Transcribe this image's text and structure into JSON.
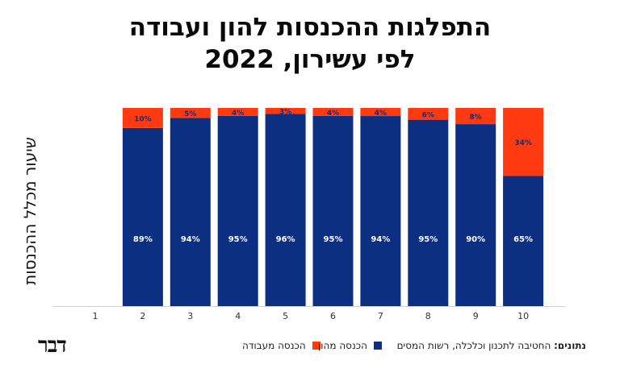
{
  "title_line1": "התפלגות ההכנסות להון ועבודה",
  "title_line2": "לפי עשירון, 2022",
  "ylabel": "שיעור מכלל ההכנסות",
  "legend": {
    "capital": "הכנסה מהון",
    "labor": "הכנסה מעבודה"
  },
  "source_label": "נתונים:",
  "source_text": "החטיבה לתכנון וכלכלה, רשות המסים",
  "logo": "דבר",
  "colors": {
    "capital": "#0d2f82",
    "labor": "#ff3a10"
  },
  "chart_data": {
    "type": "bar",
    "stacked": true,
    "categories": [
      "1",
      "2",
      "3",
      "4",
      "5",
      "6",
      "7",
      "8",
      "9",
      "10"
    ],
    "series": [
      {
        "name": "הכנסה מהון",
        "values": [
          null,
          89,
          94,
          95,
          96,
          95,
          94,
          95,
          90,
          65
        ],
        "labels": [
          "",
          "89%",
          "94%",
          "95%",
          "96%",
          "95%",
          "94%",
          "95%",
          "90%",
          "65%"
        ]
      },
      {
        "name": "הכנסה מעבודה",
        "values": [
          null,
          10,
          5,
          4,
          3,
          4,
          4,
          6,
          8,
          34
        ],
        "labels": [
          "",
          "10%",
          "5%",
          "4%",
          "3%",
          "4%",
          "4%",
          "6%",
          "8%",
          "34%"
        ]
      }
    ],
    "ylabel": "שיעור מכלל ההכנסות",
    "ylim": [
      0,
      100
    ],
    "grid": false,
    "legend_position": "bottom"
  }
}
